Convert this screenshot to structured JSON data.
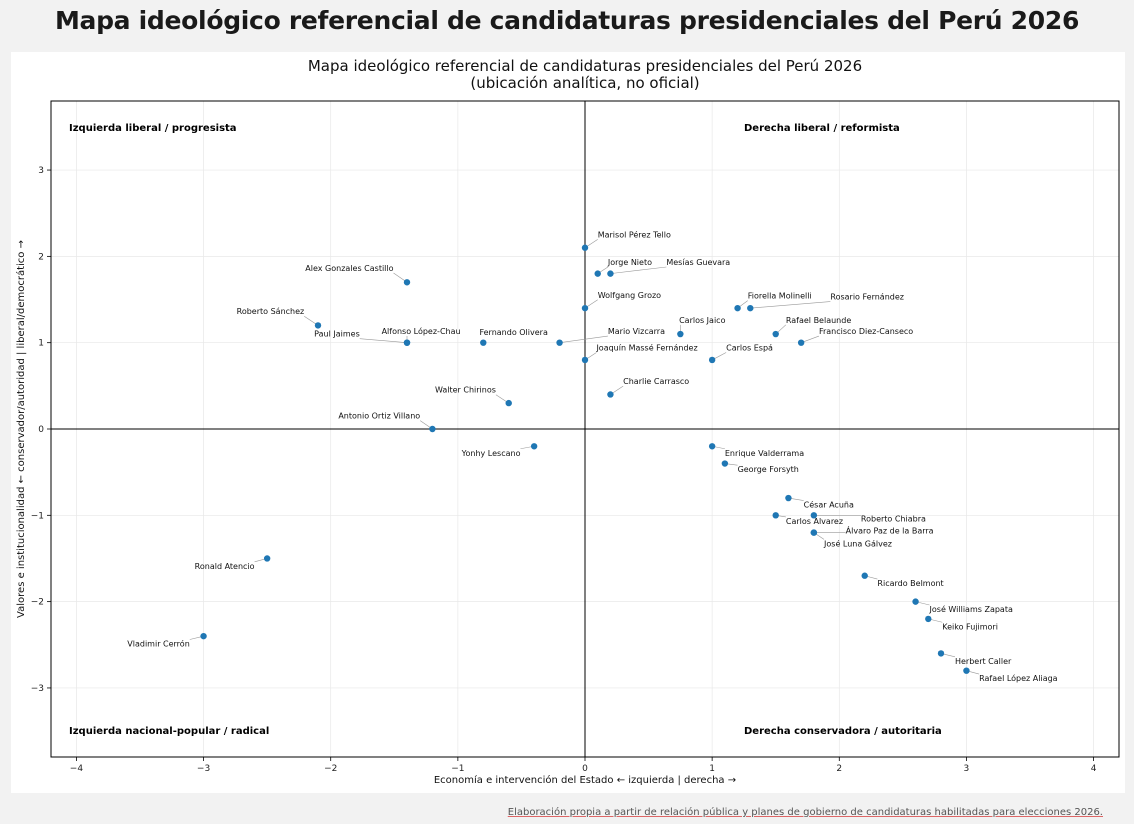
{
  "page_title": "Mapa ideológico referencial de candidaturas presidenciales del Perú 2026",
  "footer_note": "Elaboración propia a partir de relación pública y planes de gobierno de candidaturas habilitadas para elecciones 2026.",
  "colors": {
    "point": "#1f77b4",
    "axis": "#000000",
    "grid": "#e8e8e8",
    "leader": "#999999"
  },
  "chart_data": {
    "type": "scatter",
    "title_line1": "Mapa ideológico referencial de candidaturas presidenciales del Perú 2026",
    "title_line2": "(ubicación analítica, no oficial)",
    "xlabel": "Economía e intervención del Estado  ← izquierda | derecha →",
    "ylabel": "Valores e institucionalidad  ← conservador/autoridad | liberal/democrático →",
    "xlim": [
      -4.2,
      4.2
    ],
    "ylim": [
      -3.8,
      3.8
    ],
    "xticks": [
      -4,
      -3,
      -2,
      -1,
      0,
      1,
      2,
      3,
      4
    ],
    "yticks": [
      -3,
      -2,
      -1,
      0,
      1,
      2,
      3
    ],
    "xtick_labels": [
      "−4",
      "−3",
      "−2",
      "−1",
      "0",
      "1",
      "2",
      "3",
      "4"
    ],
    "ytick_labels": [
      "−3",
      "−2",
      "−1",
      "0",
      "1",
      "2",
      "3"
    ],
    "grid": true,
    "quadrant_labels": {
      "top_left": "Izquierda liberal / progresista",
      "top_right": "Derecha liberal / reformista",
      "bottom_left": "Izquierda nacional-popular / radical",
      "bottom_right": "Derecha conservadora / autoritaria"
    },
    "points": [
      {
        "name": "Marisol Pérez Tello",
        "x": 0.0,
        "y": 2.1,
        "lx": 0.1,
        "ly": 2.22
      },
      {
        "name": "Jorge Nieto",
        "x": 0.1,
        "y": 1.8,
        "lx": 0.18,
        "ly": 1.9
      },
      {
        "name": "Mesías Guevara",
        "x": 0.2,
        "y": 1.8,
        "lx": 0.64,
        "ly": 1.9
      },
      {
        "name": "Alex Gonzales Castillo",
        "x": -1.4,
        "y": 1.7,
        "lx": -2.2,
        "ly": 1.83
      },
      {
        "name": "Wolfgang Grozo",
        "x": 0.0,
        "y": 1.4,
        "lx": 0.1,
        "ly": 1.52
      },
      {
        "name": "Fiorella Molinelli",
        "x": 1.2,
        "y": 1.4,
        "lx": 1.28,
        "ly": 1.51
      },
      {
        "name": "Rosario Fernández",
        "x": 1.3,
        "y": 1.4,
        "lx": 1.93,
        "ly": 1.5
      },
      {
        "name": "Roberto Sánchez",
        "x": -2.1,
        "y": 1.2,
        "lx": -2.74,
        "ly": 1.33
      },
      {
        "name": "Rafael Belaunde",
        "x": 1.5,
        "y": 1.1,
        "lx": 1.58,
        "ly": 1.23
      },
      {
        "name": "Carlos Jaico",
        "x": 0.75,
        "y": 1.1,
        "lx": 0.74,
        "ly": 1.23
      },
      {
        "name": "Alfonso López-Chau",
        "x": -1.4,
        "y": 1.0,
        "lx": -1.6,
        "ly": 1.1
      },
      {
        "name": "Paul Jaimes",
        "x": -1.4,
        "y": 1.0,
        "lx": -2.13,
        "ly": 1.07
      },
      {
        "name": "Fernando Olivera",
        "x": -0.8,
        "y": 1.0,
        "lx": -0.83,
        "ly": 1.09
      },
      {
        "name": "Mario Vizcarra",
        "x": -0.2,
        "y": 1.0,
        "lx": 0.18,
        "ly": 1.1
      },
      {
        "name": "Francisco Diez-Canseco",
        "x": 1.7,
        "y": 1.0,
        "lx": 1.84,
        "ly": 1.1
      },
      {
        "name": "Joaquín Massé Fernández",
        "x": 0.0,
        "y": 0.8,
        "lx": 0.09,
        "ly": 0.91
      },
      {
        "name": "Carlos Espá",
        "x": 1.0,
        "y": 0.8,
        "lx": 1.11,
        "ly": 0.91
      },
      {
        "name": "Charlie Carrasco",
        "x": 0.2,
        "y": 0.4,
        "lx": 0.3,
        "ly": 0.52
      },
      {
        "name": "Walter Chirinos",
        "x": -0.6,
        "y": 0.3,
        "lx": -1.18,
        "ly": 0.42
      },
      {
        "name": "Antonio Ortiz Villano",
        "x": -1.2,
        "y": 0.0,
        "lx": -1.94,
        "ly": 0.12
      },
      {
        "name": "Yonhy Lescano",
        "x": -0.4,
        "y": -0.2,
        "lx": -0.97,
        "ly": -0.31
      },
      {
        "name": "Enrique Valderrama",
        "x": 1.0,
        "y": -0.2,
        "lx": 1.1,
        "ly": -0.31
      },
      {
        "name": "George Forsyth",
        "x": 1.1,
        "y": -0.4,
        "lx": 1.2,
        "ly": -0.5
      },
      {
        "name": "César Acuña",
        "x": 1.6,
        "y": -0.8,
        "lx": 1.72,
        "ly": -0.91
      },
      {
        "name": "Roberto Chiabra",
        "x": 1.8,
        "y": -1.0,
        "lx": 2.17,
        "ly": -1.07
      },
      {
        "name": "Carlos Alvarez",
        "x": 1.5,
        "y": -1.0,
        "lx": 1.58,
        "ly": -1.1
      },
      {
        "name": "Álvaro Paz de la Barra",
        "x": 1.8,
        "y": -1.2,
        "lx": 2.05,
        "ly": -1.21
      },
      {
        "name": "José Luna Gálvez",
        "x": 1.8,
        "y": -1.2,
        "lx": 1.88,
        "ly": -1.36
      },
      {
        "name": "Ronald Atencio",
        "x": -2.5,
        "y": -1.5,
        "lx": -3.07,
        "ly": -1.62
      },
      {
        "name": "Ricardo Belmont",
        "x": 2.2,
        "y": -1.7,
        "lx": 2.3,
        "ly": -1.82
      },
      {
        "name": "José Williams Zapata",
        "x": 2.6,
        "y": -2.0,
        "lx": 2.71,
        "ly": -2.12
      },
      {
        "name": "Keiko Fujimori",
        "x": 2.7,
        "y": -2.2,
        "lx": 2.81,
        "ly": -2.32
      },
      {
        "name": "Vladimir Cerrón",
        "x": -3.0,
        "y": -2.4,
        "lx": -3.6,
        "ly": -2.52
      },
      {
        "name": "Herbert Caller",
        "x": 2.8,
        "y": -2.6,
        "lx": 2.91,
        "ly": -2.72
      },
      {
        "name": "Rafael López Aliaga",
        "x": 3.0,
        "y": -2.8,
        "lx": 3.1,
        "ly": -2.92
      }
    ]
  }
}
